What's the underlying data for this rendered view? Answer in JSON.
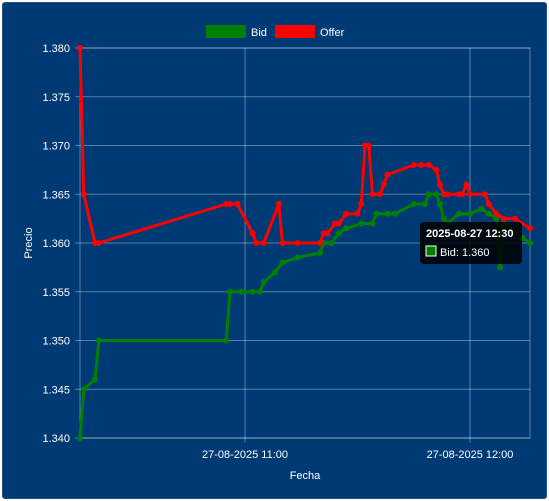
{
  "chart_data": {
    "type": "line",
    "xlabel": "Fecha",
    "ylabel": "Precio",
    "ylim": [
      1.34,
      1.38
    ],
    "y_ticks": [
      "1.340",
      "1.345",
      "1.350",
      "1.355",
      "1.360",
      "1.365",
      "1.370",
      "1.375",
      "1.380"
    ],
    "x_range": [
      "2025-08-27 10:16",
      "2025-08-27 12:16"
    ],
    "x_ticks": [
      {
        "t": "2025-08-27 11:00",
        "label": "27-08-2025 11:00"
      },
      {
        "t": "2025-08-27 12:00",
        "label": "27-08-2025 12:00"
      }
    ],
    "grid": true,
    "legend_position": "top",
    "series": [
      {
        "name": "Bid",
        "color": "#008000",
        "points": [
          [
            "2025-08-27 10:16",
            1.34
          ],
          [
            "2025-08-27 10:17",
            1.345
          ],
          [
            "2025-08-27 10:20",
            1.346
          ],
          [
            "2025-08-27 10:21",
            1.35
          ],
          [
            "2025-08-27 10:55",
            1.35
          ],
          [
            "2025-08-27 10:56",
            1.355
          ],
          [
            "2025-08-27 10:59",
            1.355
          ],
          [
            "2025-08-27 11:02",
            1.355
          ],
          [
            "2025-08-27 11:04",
            1.355
          ],
          [
            "2025-08-27 11:05",
            1.356
          ],
          [
            "2025-08-27 11:08",
            1.357
          ],
          [
            "2025-08-27 11:10",
            1.358
          ],
          [
            "2025-08-27 11:14",
            1.3585
          ],
          [
            "2025-08-27 11:20",
            1.359
          ],
          [
            "2025-08-27 11:21",
            1.36
          ],
          [
            "2025-08-27 11:23",
            1.36
          ],
          [
            "2025-08-27 11:25",
            1.361
          ],
          [
            "2025-08-27 11:27",
            1.3615
          ],
          [
            "2025-08-27 11:31",
            1.362
          ],
          [
            "2025-08-27 11:34",
            1.362
          ],
          [
            "2025-08-27 11:35",
            1.363
          ],
          [
            "2025-08-27 11:38",
            1.363
          ],
          [
            "2025-08-27 11:40",
            1.363
          ],
          [
            "2025-08-27 11:45",
            1.364
          ],
          [
            "2025-08-27 11:48",
            1.364
          ],
          [
            "2025-08-27 11:49",
            1.365
          ],
          [
            "2025-08-27 11:51",
            1.365
          ],
          [
            "2025-08-27 11:52",
            1.364
          ],
          [
            "2025-08-27 11:53",
            1.3625
          ],
          [
            "2025-08-27 11:54",
            1.362
          ],
          [
            "2025-08-27 11:57",
            1.363
          ],
          [
            "2025-08-27 12:00",
            1.363
          ],
          [
            "2025-08-27 12:03",
            1.3635
          ],
          [
            "2025-08-27 12:05",
            1.363
          ],
          [
            "2025-08-27 12:07",
            1.3625
          ],
          [
            "2025-08-27 12:08",
            1.3575
          ],
          [
            "2025-08-27 12:09",
            1.362
          ],
          [
            "2025-08-27 12:12",
            1.361
          ],
          [
            "2025-08-27 12:14",
            1.3605
          ],
          [
            "2025-08-27 12:16",
            1.36
          ]
        ]
      },
      {
        "name": "Offer",
        "color": "#ff0000",
        "points": [
          [
            "2025-08-27 10:16",
            1.38
          ],
          [
            "2025-08-27 10:17",
            1.365
          ],
          [
            "2025-08-27 10:20",
            1.36
          ],
          [
            "2025-08-27 10:21",
            1.36
          ],
          [
            "2025-08-27 10:55",
            1.364
          ],
          [
            "2025-08-27 10:56",
            1.364
          ],
          [
            "2025-08-27 10:58",
            1.364
          ],
          [
            "2025-08-27 11:02",
            1.361
          ],
          [
            "2025-08-27 11:03",
            1.36
          ],
          [
            "2025-08-27 11:05",
            1.36
          ],
          [
            "2025-08-27 11:09",
            1.364
          ],
          [
            "2025-08-27 11:10",
            1.36
          ],
          [
            "2025-08-27 11:14",
            1.36
          ],
          [
            "2025-08-27 11:20",
            1.36
          ],
          [
            "2025-08-27 11:21",
            1.361
          ],
          [
            "2025-08-27 11:22",
            1.361
          ],
          [
            "2025-08-27 11:24",
            1.362
          ],
          [
            "2025-08-27 11:25",
            1.362
          ],
          [
            "2025-08-27 11:27",
            1.363
          ],
          [
            "2025-08-27 11:30",
            1.363
          ],
          [
            "2025-08-27 11:31",
            1.364
          ],
          [
            "2025-08-27 11:32",
            1.37
          ],
          [
            "2025-08-27 11:33",
            1.37
          ],
          [
            "2025-08-27 11:34",
            1.365
          ],
          [
            "2025-08-27 11:36",
            1.365
          ],
          [
            "2025-08-27 11:37",
            1.366
          ],
          [
            "2025-08-27 11:38",
            1.367
          ],
          [
            "2025-08-27 11:45",
            1.368
          ],
          [
            "2025-08-27 11:47",
            1.368
          ],
          [
            "2025-08-27 11:49",
            1.368
          ],
          [
            "2025-08-27 11:51",
            1.3675
          ],
          [
            "2025-08-27 11:52",
            1.366
          ],
          [
            "2025-08-27 11:53",
            1.365
          ],
          [
            "2025-08-27 11:54",
            1.365
          ],
          [
            "2025-08-27 11:57",
            1.365
          ],
          [
            "2025-08-27 11:58",
            1.365
          ],
          [
            "2025-08-27 11:59",
            1.366
          ],
          [
            "2025-08-27 12:00",
            1.365
          ],
          [
            "2025-08-27 12:04",
            1.365
          ],
          [
            "2025-08-27 12:05",
            1.364
          ],
          [
            "2025-08-27 12:07",
            1.363
          ],
          [
            "2025-08-27 12:09",
            1.3625
          ],
          [
            "2025-08-27 12:12",
            1.3625
          ],
          [
            "2025-08-27 12:16",
            1.3615
          ]
        ]
      }
    ]
  },
  "tooltip": {
    "title": "2025-08-27 12:30",
    "label": "Bid: 1.360",
    "swatch_color": "#008000"
  }
}
